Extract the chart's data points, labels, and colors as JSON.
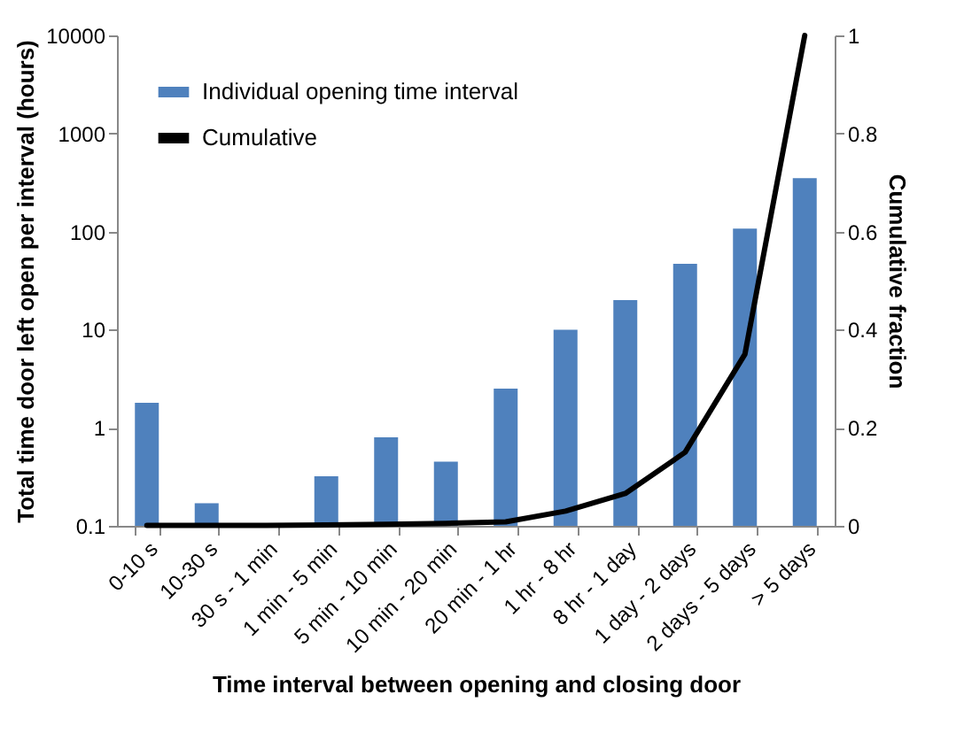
{
  "chart_data": {
    "type": "bar",
    "xlabel": "Time interval between opening and closing door",
    "ylabel": "Total time door left open per interval (hours)",
    "y2label": "Cumulative fraction",
    "categories": [
      "0-10 s",
      "10-30 s",
      "30 s - 1 min",
      "1 min - 5 min",
      "5 min - 10 min",
      "10 min - 20 min",
      "20 min - 1 hr",
      "1 hr - 8 hr",
      "8 hr - 1 day",
      "1 day - 2 days",
      "2 days - 5 days",
      "> 5 days"
    ],
    "series": [
      {
        "name": "Individual opening time interval",
        "color": "#4f81bd",
        "values": [
          1.8,
          0.17,
          null,
          0.32,
          0.8,
          0.45,
          2.5,
          10,
          20,
          47,
          107,
          350
        ]
      },
      {
        "name": "Cumulative",
        "type": "line",
        "axis": "y2",
        "color": "#000000",
        "values": [
          0.001,
          0.001,
          0.001,
          0.002,
          0.003,
          0.005,
          0.008,
          0.03,
          0.066,
          0.15,
          0.35,
          1.0
        ]
      }
    ],
    "log": "y",
    "ylim": [
      0.1,
      10000
    ],
    "yticks": [
      0.1,
      1,
      10,
      100,
      1000,
      10000
    ],
    "y2lim": [
      0,
      1
    ],
    "y2ticks": [
      0,
      0.2,
      0.4,
      0.6,
      0.8,
      1
    ],
    "legend": "top left",
    "marker": "none",
    "line_style": "solid",
    "grid": false
  }
}
